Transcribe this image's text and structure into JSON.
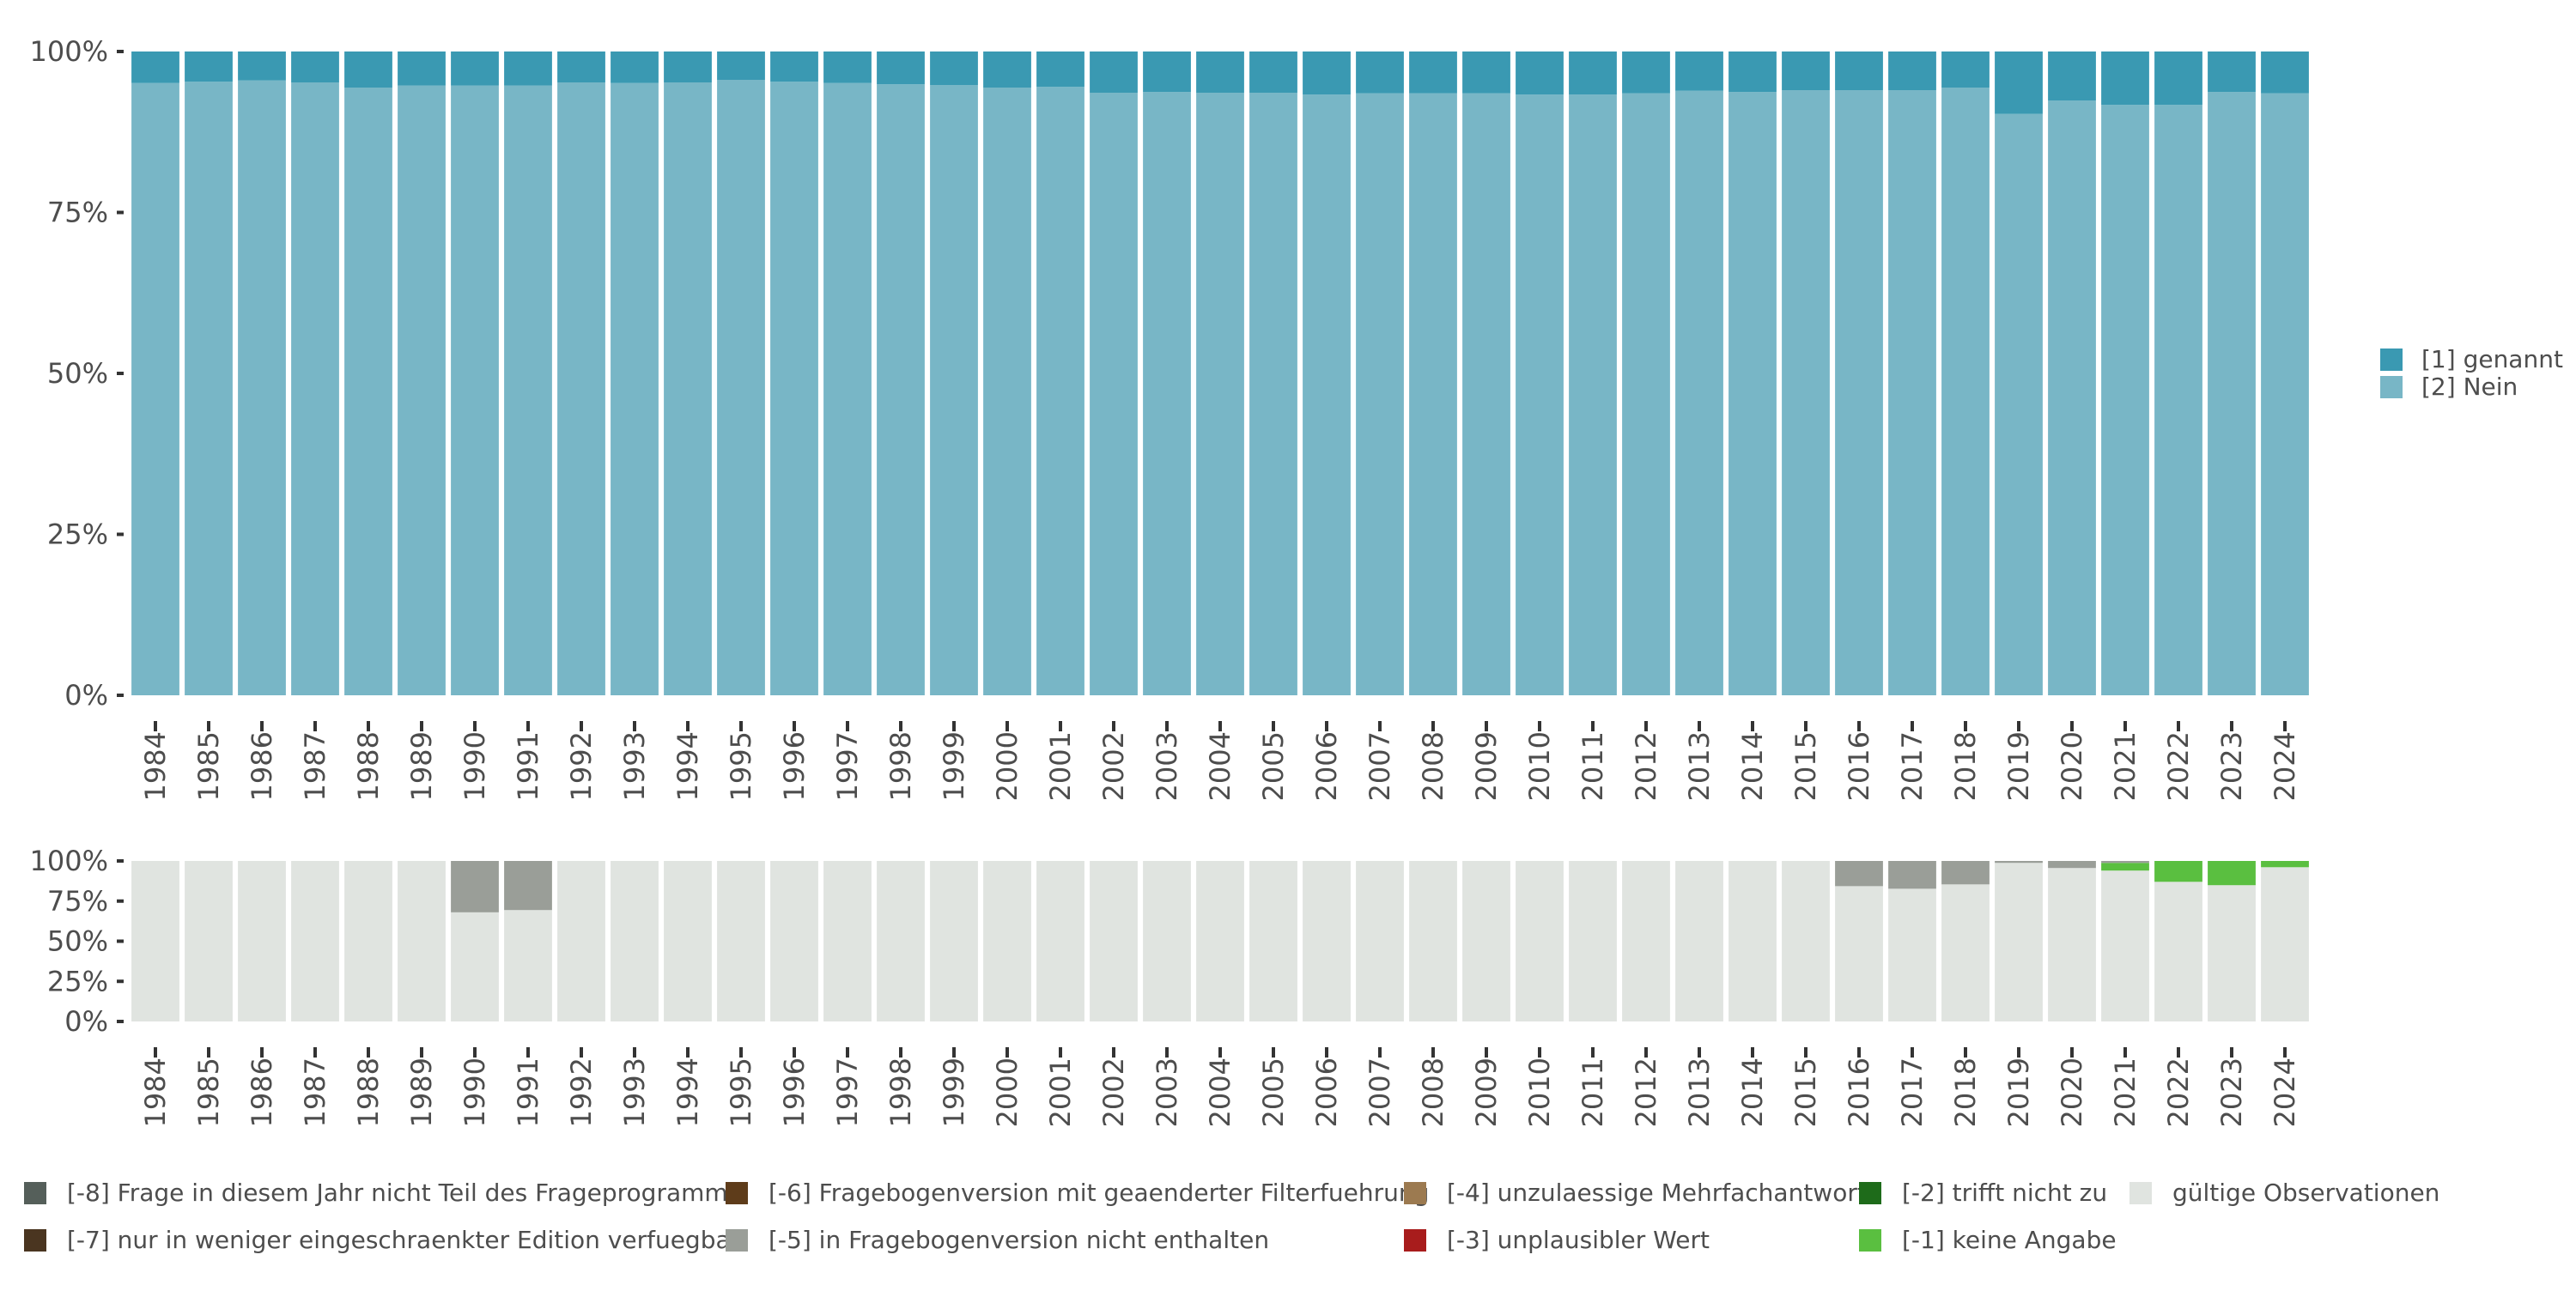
{
  "chart_data": [
    {
      "type": "bar",
      "stacked": true,
      "percent": true,
      "categories": [
        "1984",
        "1985",
        "1986",
        "1987",
        "1988",
        "1989",
        "1990",
        "1991",
        "1992",
        "1993",
        "1994",
        "1995",
        "1996",
        "1997",
        "1998",
        "1999",
        "2000",
        "2001",
        "2002",
        "2003",
        "2004",
        "2005",
        "2006",
        "2007",
        "2008",
        "2009",
        "2010",
        "2011",
        "2012",
        "2013",
        "2014",
        "2015",
        "2016",
        "2017",
        "2018",
        "2019",
        "2020",
        "2021",
        "2022",
        "2023",
        "2024"
      ],
      "yticks": [
        "0%",
        "25%",
        "50%",
        "75%",
        "100%"
      ],
      "ylim": [
        0,
        100
      ],
      "legend_position": "right",
      "series": [
        {
          "name": "[1] genannt",
          "color": "#3a99b2",
          "values": [
            4.9,
            4.7,
            4.5,
            4.8,
            5.6,
            5.3,
            5.3,
            5.3,
            4.8,
            4.9,
            4.8,
            4.4,
            4.7,
            4.9,
            5.1,
            5.2,
            5.6,
            5.5,
            6.4,
            6.3,
            6.4,
            6.4,
            6.7,
            6.5,
            6.5,
            6.5,
            6.7,
            6.7,
            6.5,
            6.1,
            6.3,
            6.0,
            6.0,
            6.0,
            5.6,
            9.7,
            7.6,
            8.3,
            8.3,
            6.3,
            6.5
          ]
        },
        {
          "name": "[2] Nein",
          "color": "#78b6c6",
          "values": [
            95.1,
            95.3,
            95.5,
            95.2,
            94.4,
            94.7,
            94.7,
            94.7,
            95.2,
            95.1,
            95.2,
            95.6,
            95.3,
            95.1,
            94.9,
            94.8,
            94.4,
            94.5,
            93.6,
            93.7,
            93.6,
            93.6,
            93.3,
            93.5,
            93.5,
            93.5,
            93.3,
            93.3,
            93.5,
            93.9,
            93.7,
            94.0,
            94.0,
            94.0,
            94.4,
            90.3,
            92.4,
            91.7,
            91.7,
            93.7,
            93.5
          ]
        }
      ]
    },
    {
      "type": "bar",
      "stacked": true,
      "percent": true,
      "categories": [
        "1984",
        "1985",
        "1986",
        "1987",
        "1988",
        "1989",
        "1990",
        "1991",
        "1992",
        "1993",
        "1994",
        "1995",
        "1996",
        "1997",
        "1998",
        "1999",
        "2000",
        "2001",
        "2002",
        "2003",
        "2004",
        "2005",
        "2006",
        "2007",
        "2008",
        "2009",
        "2010",
        "2011",
        "2012",
        "2013",
        "2014",
        "2015",
        "2016",
        "2017",
        "2018",
        "2019",
        "2020",
        "2021",
        "2022",
        "2023",
        "2024"
      ],
      "yticks": [
        "0%",
        "25%",
        "50%",
        "75%",
        "100%"
      ],
      "ylim": [
        0,
        100
      ],
      "legend_position": "bottom",
      "series": [
        {
          "name": "[-5] in Fragebogenversion nicht enthalten",
          "color": "#9a9e98",
          "values": [
            0,
            0,
            0,
            0,
            0,
            0,
            32,
            30.6,
            0,
            0,
            0,
            0,
            0,
            0,
            0,
            0,
            0,
            0,
            0,
            0,
            0,
            0,
            0,
            0,
            0,
            0,
            0,
            0,
            0,
            0,
            0,
            0,
            15.7,
            17.3,
            14.6,
            1.2,
            4.4,
            1.2,
            0,
            0,
            0
          ]
        },
        {
          "name": "[-1] keine Angabe",
          "color": "#5abf40",
          "values": [
            0,
            0,
            0,
            0,
            0,
            0,
            0,
            0,
            0,
            0,
            0,
            0,
            0,
            0,
            0,
            0,
            0,
            0,
            0,
            0,
            0,
            0,
            0,
            0,
            0,
            0,
            0,
            0,
            0,
            0,
            0,
            0,
            0,
            0,
            0,
            0,
            0,
            4.8,
            13,
            15.1,
            3.9
          ]
        },
        {
          "name": "gültige Observationen",
          "color": "#e0e4e0",
          "values": [
            100,
            100,
            100,
            100,
            100,
            100,
            68,
            69.4,
            100,
            100,
            100,
            100,
            100,
            100,
            100,
            100,
            100,
            100,
            100,
            100,
            100,
            100,
            100,
            100,
            100,
            100,
            100,
            100,
            100,
            100,
            100,
            100,
            84.3,
            82.7,
            85.4,
            98.8,
            95.6,
            94,
            87,
            84.9,
            96.1
          ]
        }
      ]
    }
  ],
  "bottom_legend": [
    {
      "label": "[-8] Frage in diesem Jahr nicht Teil des Frageprogramms",
      "color": "#555f5a"
    },
    {
      "label": "[-6] Fragebogenversion mit geaenderter Filterfuehrung",
      "color": "#5e3c1a"
    },
    {
      "label": "[-4] unzulaessige Mehrfachantwort",
      "color": "#9c7a50"
    },
    {
      "label": "[-2] trifft nicht zu",
      "color": "#1e6b1a"
    },
    {
      "label": "gültige Observationen",
      "color": "#e0e4e0"
    },
    {
      "label": "[-7] nur in weniger eingeschraenkter Edition verfuegbar",
      "color": "#4a3520"
    },
    {
      "label": "[-5] in Fragebogenversion nicht enthalten",
      "color": "#9a9e98"
    },
    {
      "label": "[-3] unplausibler Wert",
      "color": "#a81c1c"
    },
    {
      "label": "[-1] keine Angabe",
      "color": "#5abf40"
    }
  ]
}
